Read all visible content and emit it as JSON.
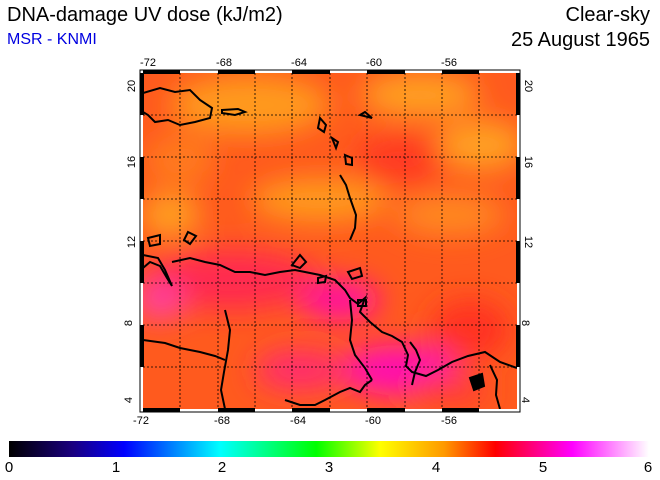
{
  "header": {
    "title": "DNA-damage UV dose (kJ/m2)",
    "subtitle": "MSR - KNMI",
    "condition": "Clear-sky",
    "date": "25 August 1965"
  },
  "map": {
    "lon_range": [
      -72,
      -52
    ],
    "lat_range": [
      4,
      20
    ],
    "lon_ticks": [
      "-72",
      "-68",
      "-64",
      "-60",
      "-56"
    ],
    "lat_ticks": [
      "20",
      "16",
      "12",
      "8",
      "4"
    ],
    "grid": true
  },
  "colorbar": {
    "range": [
      0,
      6
    ],
    "labels": [
      "0",
      "1",
      "2",
      "3",
      "4",
      "5",
      "6"
    ],
    "colors": [
      "#000000",
      "#0000ff",
      "#00ffff",
      "#00ff00",
      "#ffff00",
      "#ff8000",
      "#ff0000",
      "#ff00ff",
      "#ffffff"
    ]
  }
}
